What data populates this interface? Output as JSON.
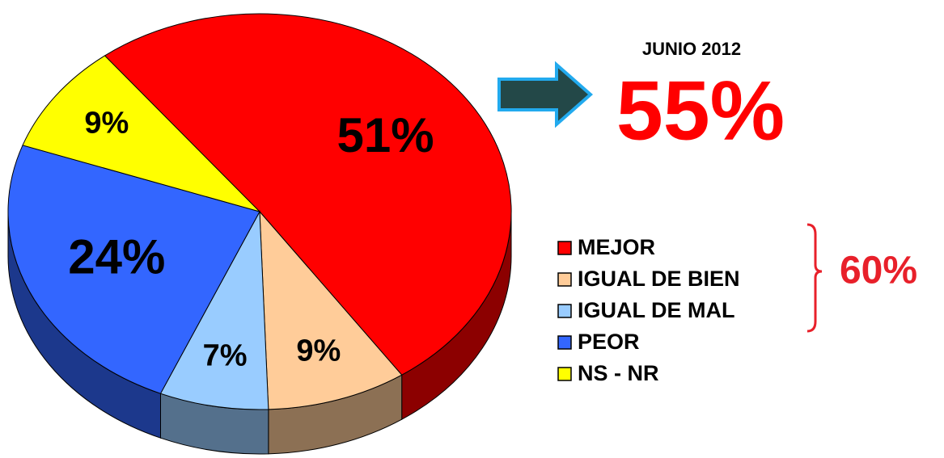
{
  "chart_data": {
    "type": "pie",
    "categories": [
      "MEJOR",
      "IGUAL DE BIEN",
      "IGUAL DE MAL",
      "PEOR",
      "NS - NR"
    ],
    "values": [
      51,
      9,
      7,
      24,
      9
    ],
    "value_labels": [
      "51%",
      "9%",
      "7%",
      "24%",
      "9%"
    ],
    "colors": [
      "#ff0000",
      "#ffcc99",
      "#99ccff",
      "#3366ff",
      "#ffff00"
    ],
    "annotations": [
      "JUNIO 2012",
      "55%",
      "60%"
    ]
  }
}
